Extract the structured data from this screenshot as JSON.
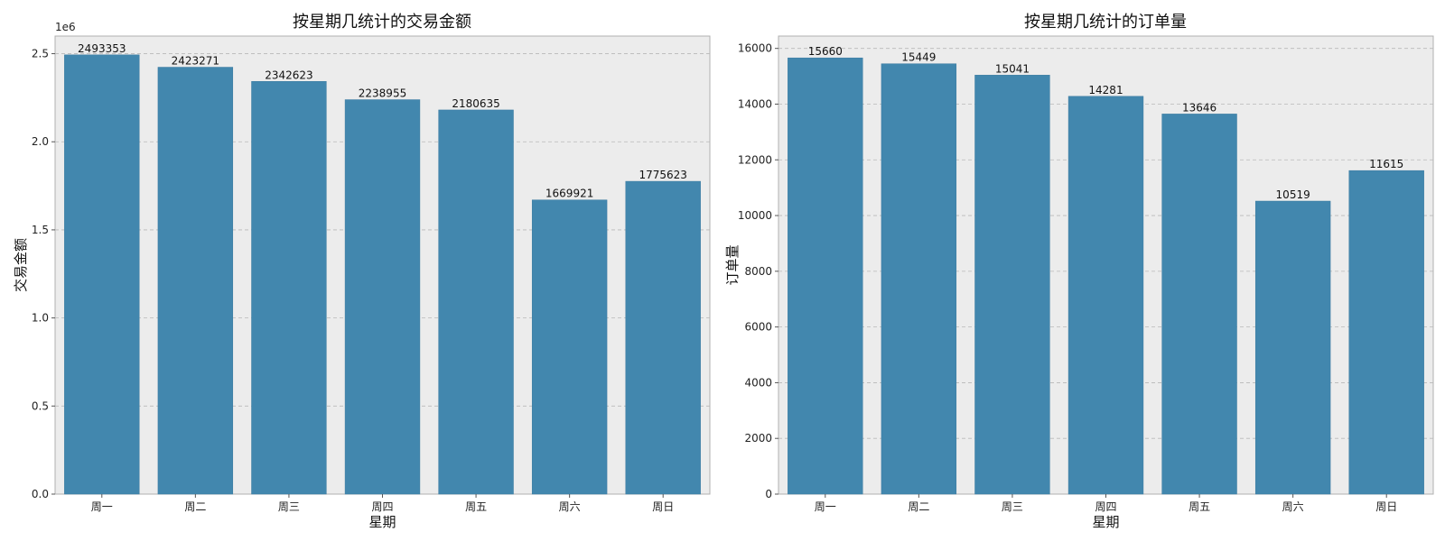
{
  "chart_data": [
    {
      "type": "bar",
      "title": "按星期几统计的交易金额",
      "xlabel": "星期",
      "ylabel": "交易金额",
      "categories": [
        "周一",
        "周二",
        "周三",
        "周四",
        "周五",
        "周六",
        "周日"
      ],
      "values": [
        2493353,
        2423271,
        2342623,
        2238955,
        2180635,
        1669921,
        1775623
      ],
      "ylim": [
        0,
        2600000
      ],
      "yticks": [
        0,
        500000,
        1000000,
        1500000,
        2000000,
        2500000
      ],
      "ytick_labels": [
        "0.0",
        "0.5",
        "1.0",
        "1.5",
        "2.0",
        "2.5"
      ],
      "offset_label": "1e6",
      "grid": true,
      "bar_color": "#4287ae"
    },
    {
      "type": "bar",
      "title": "按星期几统计的订单量",
      "xlabel": "星期",
      "ylabel": "订单量",
      "categories": [
        "周一",
        "周二",
        "周三",
        "周四",
        "周五",
        "周六",
        "周日"
      ],
      "values": [
        15660,
        15449,
        15041,
        14281,
        13646,
        10519,
        11615
      ],
      "ylim": [
        0,
        16443
      ],
      "yticks": [
        0,
        2000,
        4000,
        6000,
        8000,
        10000,
        12000,
        14000,
        16000
      ],
      "ytick_labels": [
        "0",
        "2000",
        "4000",
        "6000",
        "8000",
        "10000",
        "12000",
        "14000",
        "16000"
      ],
      "grid": true,
      "bar_color": "#4287ae"
    }
  ]
}
